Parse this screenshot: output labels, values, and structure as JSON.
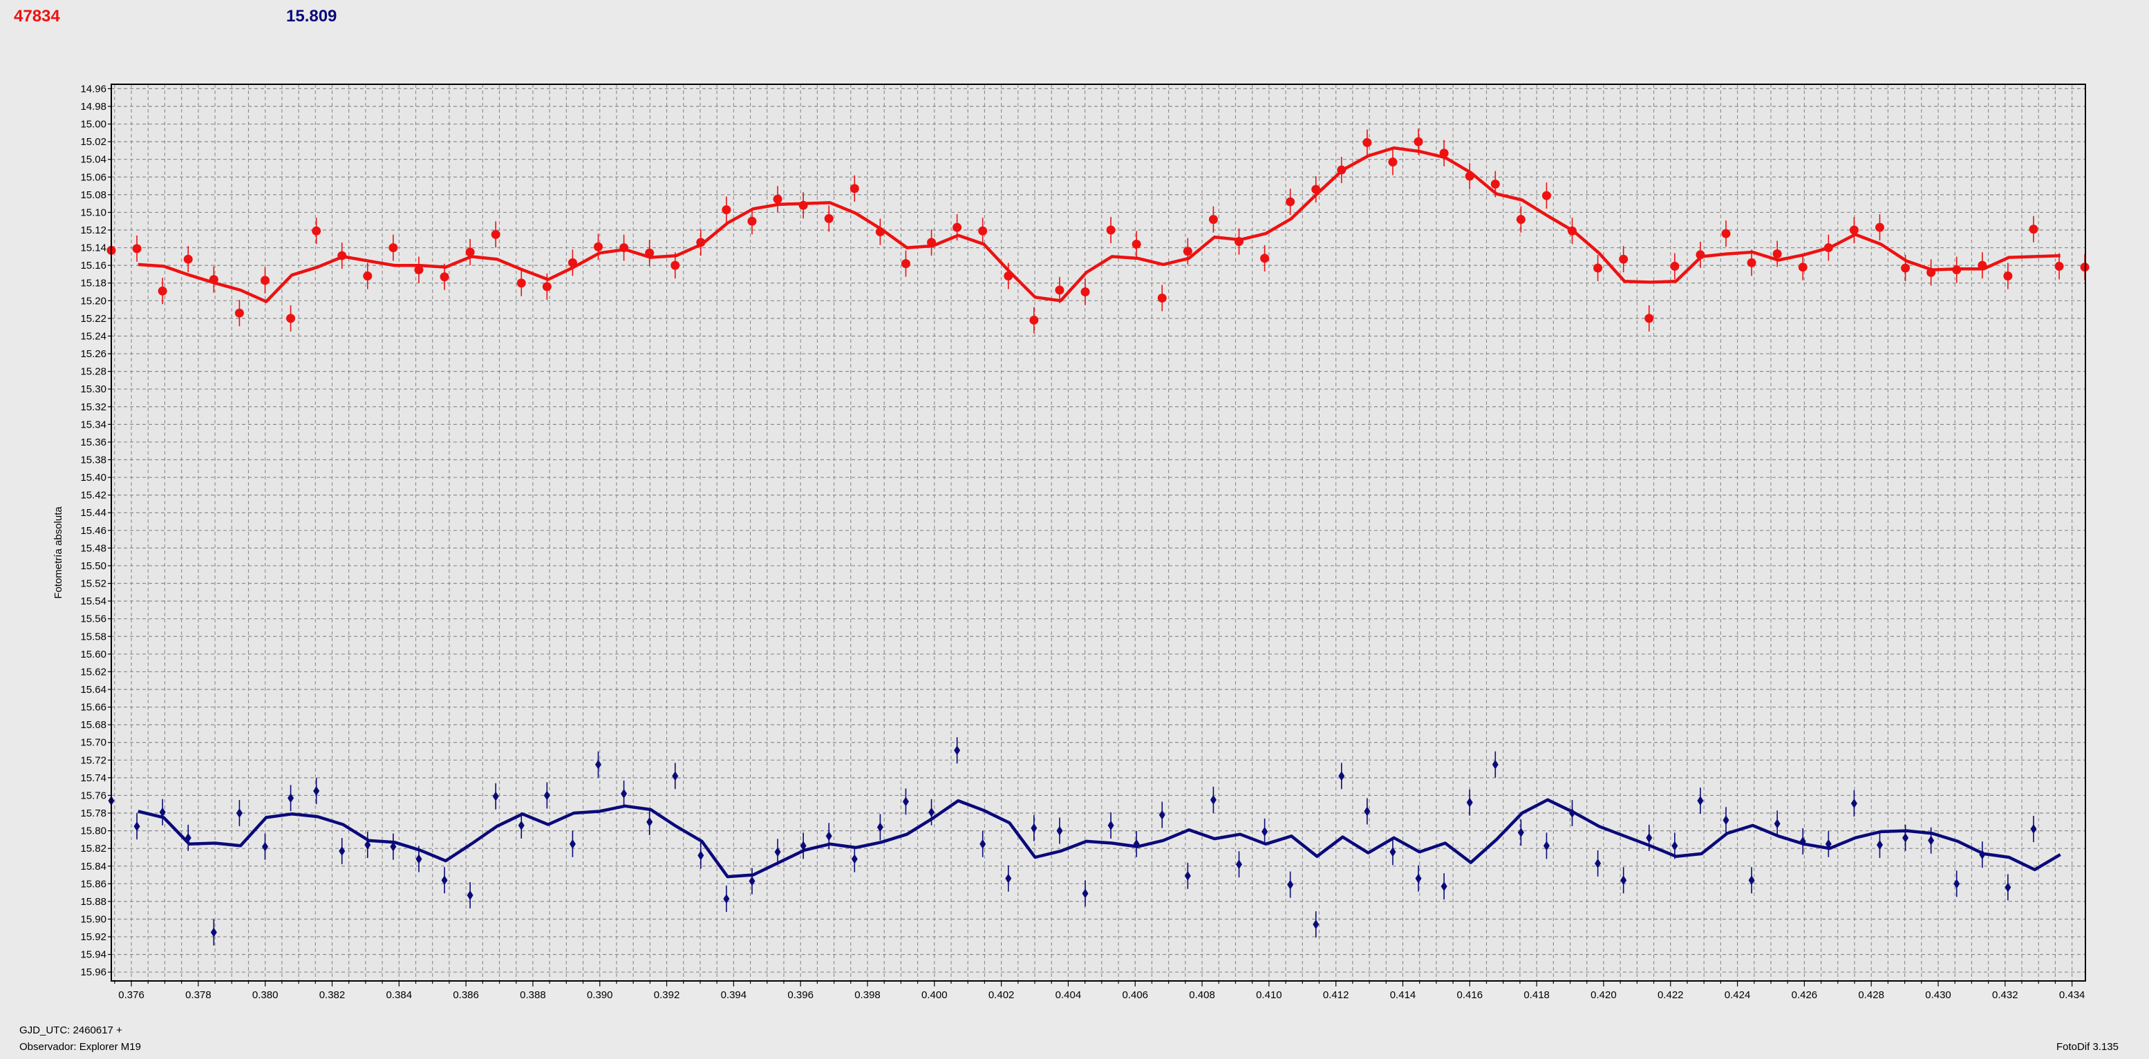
{
  "header": {
    "red_value": "47834",
    "blue_value": "15.809",
    "red_color": "#ee1111",
    "blue_color": "#0a0a7a"
  },
  "footer": {
    "gjd": "GJD_UTC: 2460617 +",
    "observer": "Observador: Explorer M19",
    "version": "FotoDif 3.135"
  },
  "chart_data": {
    "type": "scatter",
    "ylabel": "Fotometría absoluta",
    "xlabel": "",
    "title": "",
    "xlim": [
      0.3754,
      0.4344
    ],
    "ylim": [
      15.97,
      14.955
    ],
    "y_inverted": true,
    "grid": true,
    "x_ticks": [
      "0.376",
      "0.378",
      "0.380",
      "0.382",
      "0.384",
      "0.386",
      "0.388",
      "0.390",
      "0.392",
      "0.394",
      "0.396",
      "0.398",
      "0.400",
      "0.402",
      "0.404",
      "0.406",
      "0.408",
      "0.410",
      "0.412",
      "0.414",
      "0.416",
      "0.418",
      "0.420",
      "0.422",
      "0.424",
      "0.426",
      "0.428",
      "0.430",
      "0.432",
      "0.434"
    ],
    "y_ticks": [
      "14.96",
      "14.98",
      "15.00",
      "15.02",
      "15.04",
      "15.06",
      "15.08",
      "15.10",
      "15.12",
      "15.14",
      "15.16",
      "15.18",
      "15.20",
      "15.22",
      "15.24",
      "15.26",
      "15.28",
      "15.30",
      "15.32",
      "15.34",
      "15.36",
      "15.38",
      "15.40",
      "15.42",
      "15.44",
      "15.46",
      "15.48",
      "15.50",
      "15.52",
      "15.54",
      "15.56",
      "15.58",
      "15.60",
      "15.62",
      "15.64",
      "15.66",
      "15.68",
      "15.70",
      "15.72",
      "15.74",
      "15.76",
      "15.78",
      "15.80",
      "15.82",
      "15.84",
      "15.86",
      "15.88",
      "15.90",
      "15.92",
      "15.94",
      "15.96"
    ],
    "series": [
      {
        "color": "#ee1111",
        "marker": "circle",
        "points_y": [
          15.143,
          15.141,
          15.189,
          15.153,
          15.176,
          15.214,
          15.177,
          15.22,
          15.121,
          15.149,
          15.172,
          15.14,
          15.165,
          15.173,
          15.145,
          15.125,
          15.18,
          15.184,
          15.157,
          15.139,
          15.14,
          15.146,
          15.16,
          15.134,
          15.097,
          15.11,
          15.085,
          15.092,
          15.107,
          15.073,
          15.122,
          15.158,
          15.134,
          15.117,
          15.121,
          15.172,
          15.222,
          15.188,
          15.19,
          15.12,
          15.136,
          15.197,
          15.144,
          15.108,
          15.133,
          15.152,
          15.088,
          15.074,
          15.052,
          15.021,
          15.043,
          15.02,
          15.033,
          15.059,
          15.068,
          15.108,
          15.081,
          15.121,
          15.163,
          15.153,
          15.22,
          15.161,
          15.148,
          15.124,
          15.157,
          15.147,
          15.162,
          15.14,
          15.12,
          15.117,
          15.163,
          15.168,
          15.165,
          15.16,
          15.172,
          15.119,
          15.161,
          15.162
        ],
        "line_y": [
          15.159,
          15.161,
          15.171,
          15.18,
          15.188,
          15.201,
          15.171,
          15.162,
          15.15,
          15.155,
          15.16,
          15.16,
          15.162,
          15.15,
          15.153,
          15.165,
          15.176,
          15.162,
          15.146,
          15.142,
          15.151,
          15.149,
          15.136,
          15.112,
          15.096,
          15.091,
          15.09,
          15.089,
          15.101,
          15.119,
          15.14,
          15.138,
          15.126,
          15.136,
          15.167,
          15.196,
          15.2,
          15.168,
          15.15,
          15.152,
          15.159,
          15.152,
          15.128,
          15.131,
          15.124,
          15.107,
          15.079,
          15.052,
          15.036,
          15.027,
          15.031,
          15.038,
          15.055,
          15.079,
          15.086,
          15.104,
          15.121,
          15.146,
          15.178,
          15.179,
          15.178,
          15.15,
          15.147,
          15.145,
          15.154,
          15.148,
          15.14,
          15.125,
          15.136,
          15.155,
          15.165,
          15.164,
          15.164,
          15.151,
          15.15,
          15.149
        ]
      },
      {
        "color": "#0a0a7a",
        "marker": "diamond",
        "points_y": [
          15.766,
          15.795,
          15.779,
          15.808,
          15.915,
          15.78,
          15.818,
          15.763,
          15.755,
          15.823,
          15.816,
          15.818,
          15.832,
          15.856,
          15.873,
          15.761,
          15.794,
          15.76,
          15.815,
          15.725,
          15.758,
          15.79,
          15.738,
          15.828,
          15.877,
          15.857,
          15.824,
          15.817,
          15.806,
          15.832,
          15.796,
          15.767,
          15.779,
          15.709,
          15.815,
          15.854,
          15.797,
          15.8,
          15.871,
          15.794,
          15.815,
          15.782,
          15.851,
          15.765,
          15.838,
          15.801,
          15.861,
          15.906,
          15.738,
          15.778,
          15.824,
          15.854,
          15.863,
          15.768,
          15.725,
          15.802,
          15.817,
          15.78,
          15.837,
          15.856,
          15.808,
          15.817,
          15.766,
          15.788,
          15.856,
          15.792,
          15.812,
          15.815,
          15.769,
          15.816,
          15.808,
          15.811,
          15.86,
          15.827,
          15.864,
          15.798
        ],
        "line_y": [
          15.778,
          15.785,
          15.815,
          15.814,
          15.817,
          15.785,
          15.781,
          15.784,
          15.793,
          15.811,
          15.813,
          15.822,
          15.834,
          15.815,
          15.795,
          15.781,
          15.793,
          15.78,
          15.778,
          15.772,
          15.776,
          15.795,
          15.812,
          15.852,
          15.85,
          15.836,
          15.822,
          15.815,
          15.819,
          15.813,
          15.804,
          15.786,
          15.766,
          15.777,
          15.791,
          15.83,
          15.823,
          15.812,
          15.814,
          15.818,
          15.811,
          15.799,
          15.809,
          15.804,
          15.815,
          15.806,
          15.829,
          15.807,
          15.825,
          15.808,
          15.824,
          15.814,
          15.836,
          15.81,
          15.78,
          15.765,
          15.779,
          15.795,
          15.806,
          15.817,
          15.829,
          15.826,
          15.803,
          15.794,
          15.806,
          15.815,
          15.82,
          15.808,
          15.801,
          15.8,
          15.803,
          15.812,
          15.826,
          15.83,
          15.844,
          15.827
        ]
      }
    ]
  }
}
